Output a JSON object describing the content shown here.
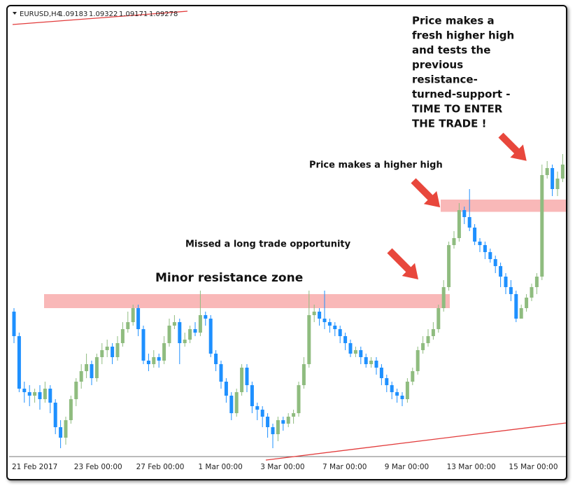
{
  "header": {
    "symbol": "EURUSD,H4",
    "ohlc": [
      1.09183,
      1.09322,
      1.09171,
      1.09278
    ]
  },
  "chart_data": {
    "type": "candlestick",
    "categories": [
      "21 Feb 2017",
      null,
      null,
      null,
      null,
      null,
      null,
      null,
      null,
      null,
      null,
      null,
      "23 Feb 00:00",
      null,
      null,
      null,
      null,
      null,
      null,
      null,
      null,
      null,
      null,
      null,
      "27 Feb 00:00",
      null,
      null,
      null,
      null,
      null,
      null,
      null,
      null,
      null,
      null,
      null,
      "1 Mar 00:00",
      null,
      null,
      null,
      null,
      null,
      null,
      null,
      null,
      null,
      null,
      null,
      "3 Mar 00:00",
      null,
      null,
      null,
      null,
      null,
      null,
      null,
      null,
      null,
      null,
      null,
      "7 Mar 00:00",
      null,
      null,
      null,
      null,
      null,
      null,
      null,
      null,
      null,
      null,
      null,
      "9 Mar 00:00",
      null,
      null,
      null,
      null,
      null,
      null,
      null,
      null,
      null,
      null,
      null,
      "13 Mar 00:00",
      null,
      null,
      null,
      null,
      null,
      null,
      null,
      null,
      null,
      null,
      null,
      "15 Mar 00:00",
      null,
      null,
      null,
      null,
      null,
      null,
      null,
      null,
      null,
      null
    ],
    "open": [
      1.0563,
      1.0549,
      1.0519,
      1.0517,
      1.0515,
      1.0517,
      1.0513,
      1.0519,
      1.0511,
      1.0497,
      1.0491,
      1.0501,
      1.0513,
      1.0523,
      1.0529,
      1.0533,
      1.0525,
      1.0537,
      1.0541,
      1.0543,
      1.0537,
      1.0545,
      1.0553,
      1.0557,
      1.0565,
      1.0553,
      1.0535,
      1.0533,
      1.0537,
      1.0535,
      1.0545,
      1.0555,
      1.0557,
      1.0545,
      1.0547,
      1.0553,
      1.0551,
      1.0561,
      1.0559,
      1.0539,
      1.0533,
      1.0523,
      1.0515,
      1.0505,
      1.0517,
      1.0531,
      1.0521,
      1.0509,
      1.0507,
      1.0503,
      1.0497,
      1.0493,
      1.0501,
      1.0499,
      1.0503,
      1.0505,
      1.0521,
      1.0533,
      1.0561,
      1.0563,
      1.0559,
      1.0557,
      1.0555,
      1.0553,
      1.0549,
      1.0545,
      1.0539,
      1.0541,
      1.0537,
      1.0533,
      1.0535,
      1.0531,
      1.0525,
      1.0521,
      1.0517,
      1.0515,
      1.0513,
      1.0523,
      1.0529,
      1.0541,
      1.0545,
      1.0549,
      1.0553,
      1.0565,
      1.0577,
      1.0601,
      1.0605,
      1.0621,
      1.0617,
      1.0611,
      1.0603,
      1.0601,
      1.0597,
      1.0593,
      1.0589,
      1.0583,
      1.0577,
      1.0573,
      1.0559,
      1.0565,
      1.0571,
      1.0577,
      1.0583,
      1.0641,
      1.0645,
      1.0633,
      1.0639
    ],
    "high": [
      1.0565,
      1.0551,
      1.0523,
      1.0521,
      1.0519,
      1.0521,
      1.0523,
      1.0521,
      1.0513,
      1.0501,
      1.0503,
      1.0515,
      1.0525,
      1.0533,
      1.0539,
      1.0535,
      1.0539,
      1.0545,
      1.0547,
      1.0545,
      1.0549,
      1.0557,
      1.0563,
      1.0567,
      1.0567,
      1.0555,
      1.0539,
      1.0541,
      1.0539,
      1.0549,
      1.0559,
      1.0561,
      1.0559,
      1.0551,
      1.0555,
      1.0557,
      1.0575,
      1.0563,
      1.0561,
      1.0541,
      1.0535,
      1.0525,
      1.0517,
      1.0519,
      1.0533,
      1.0533,
      1.0523,
      1.0511,
      1.0509,
      1.0505,
      1.0499,
      1.0503,
      1.0503,
      1.0505,
      1.0507,
      1.0523,
      1.0537,
      1.0575,
      1.0567,
      1.0565,
      1.0575,
      1.0559,
      1.0557,
      1.0555,
      1.0551,
      1.0547,
      1.0543,
      1.0543,
      1.0539,
      1.0537,
      1.0537,
      1.0533,
      1.0527,
      1.0523,
      1.0519,
      1.0517,
      1.0525,
      1.0531,
      1.0543,
      1.0549,
      1.0553,
      1.0557,
      1.0567,
      1.0581,
      1.0603,
      1.0609,
      1.0625,
      1.0623,
      1.0633,
      1.0613,
      1.0605,
      1.0603,
      1.0599,
      1.0595,
      1.0591,
      1.0585,
      1.0581,
      1.0575,
      1.0567,
      1.0573,
      1.0579,
      1.0585,
      1.0647,
      1.0649,
      1.0647,
      1.0643,
      1.0653
    ],
    "low": [
      1.0545,
      1.0517,
      1.0511,
      1.0509,
      1.0511,
      1.0507,
      1.0511,
      1.0505,
      1.0493,
      1.0485,
      1.0487,
      1.0499,
      1.0509,
      1.0519,
      1.0525,
      1.0521,
      1.0523,
      1.0533,
      1.0537,
      1.0533,
      1.0535,
      1.0543,
      1.0551,
      1.0555,
      1.0549,
      1.0533,
      1.0529,
      1.0531,
      1.0531,
      1.0533,
      1.0543,
      1.0553,
      1.0533,
      1.0543,
      1.0545,
      1.0549,
      1.0549,
      1.0555,
      1.0537,
      1.0529,
      1.0519,
      1.0511,
      1.0501,
      1.0503,
      1.0515,
      1.0517,
      1.0505,
      1.0501,
      1.0497,
      1.0491,
      1.0485,
      1.0489,
      1.0495,
      1.0497,
      1.0499,
      1.0503,
      1.0519,
      1.0531,
      1.0557,
      1.0555,
      1.0553,
      1.0551,
      1.0549,
      1.0545,
      1.0541,
      1.0537,
      1.0537,
      1.0533,
      1.0531,
      1.0531,
      1.0527,
      1.0521,
      1.0517,
      1.0513,
      1.0511,
      1.0509,
      1.0511,
      1.0521,
      1.0527,
      1.0539,
      1.0543,
      1.0547,
      1.0551,
      1.0563,
      1.0575,
      1.0599,
      1.0603,
      1.0613,
      1.0609,
      1.0601,
      1.0597,
      1.0593,
      1.0591,
      1.0585,
      1.0577,
      1.0573,
      1.0569,
      1.0557,
      1.0559,
      1.0563,
      1.0569,
      1.0573,
      1.0581,
      1.0639,
      1.0629,
      1.0629,
      1.0637
    ],
    "close": [
      1.0549,
      1.0519,
      1.0517,
      1.0515,
      1.0517,
      1.0513,
      1.0519,
      1.0511,
      1.0497,
      1.0491,
      1.0501,
      1.0513,
      1.0523,
      1.0529,
      1.0533,
      1.0525,
      1.0537,
      1.0541,
      1.0543,
      1.0537,
      1.0545,
      1.0553,
      1.0557,
      1.0565,
      1.0553,
      1.0535,
      1.0533,
      1.0537,
      1.0535,
      1.0545,
      1.0555,
      1.0557,
      1.0545,
      1.0547,
      1.0553,
      1.0551,
      1.0561,
      1.0559,
      1.0539,
      1.0533,
      1.0523,
      1.0515,
      1.0505,
      1.0517,
      1.0531,
      1.0521,
      1.0509,
      1.0507,
      1.0503,
      1.0497,
      1.0493,
      1.0501,
      1.0499,
      1.0503,
      1.0505,
      1.0521,
      1.0533,
      1.0561,
      1.0563,
      1.0559,
      1.0557,
      1.0555,
      1.0553,
      1.0549,
      1.0545,
      1.0539,
      1.0541,
      1.0537,
      1.0533,
      1.0535,
      1.0531,
      1.0525,
      1.0521,
      1.0517,
      1.0515,
      1.0513,
      1.0523,
      1.0529,
      1.0541,
      1.0545,
      1.0549,
      1.0553,
      1.0565,
      1.0577,
      1.0601,
      1.0605,
      1.0621,
      1.0617,
      1.0611,
      1.0603,
      1.0601,
      1.0597,
      1.0593,
      1.0589,
      1.0583,
      1.0577,
      1.0573,
      1.0559,
      1.0565,
      1.0571,
      1.0577,
      1.0583,
      1.0641,
      1.0645,
      1.0633,
      1.0639,
      1.0647
    ],
    "up_color": "#8fbc7f",
    "down_color": "#1e90ff",
    "ylim": [
      1.0481,
      1.0735
    ],
    "zones": [
      {
        "low": 1.0565,
        "high": 1.0573,
        "color": "#f9b8b8"
      },
      {
        "low": 1.062,
        "high": 1.0627,
        "color": "#f9b8b8"
      }
    ],
    "annotations": [
      "Minor resistance zone",
      "Missed a long trade opportunity",
      "Price makes a higher high",
      [
        "Price makes a",
        "fresh higher high",
        "and tests the",
        "previous",
        "resistance-",
        "turned-support -",
        "TIME TO ENTER",
        "THE TRADE !"
      ]
    ]
  }
}
